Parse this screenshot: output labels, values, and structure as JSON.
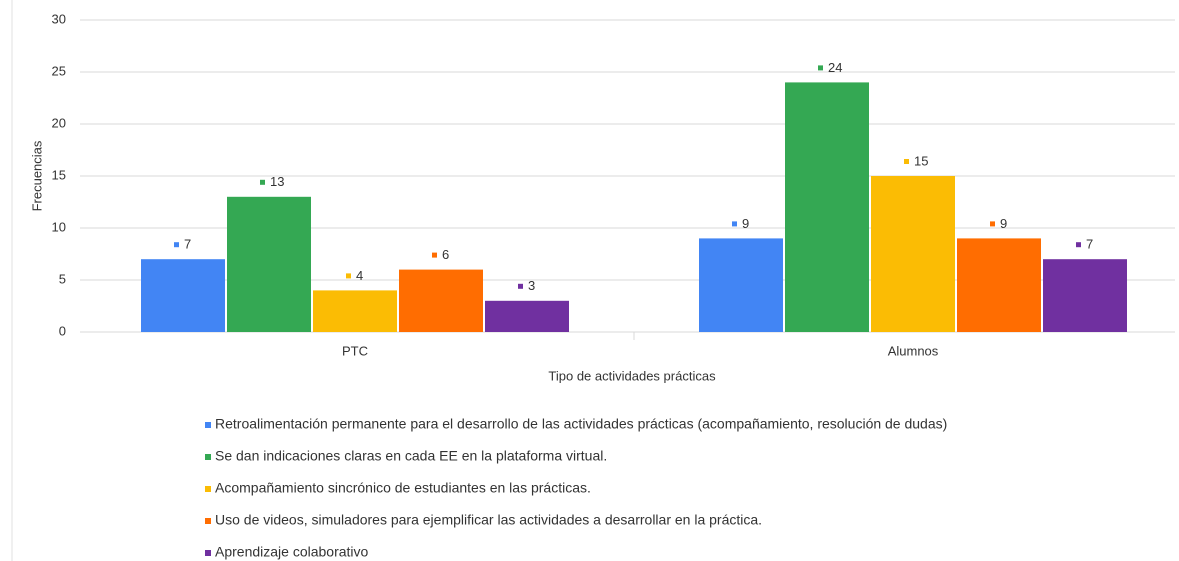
{
  "chart_data": {
    "type": "bar",
    "x_label": "Tipo de actividades prácticas",
    "y_label": "Frecuencias",
    "categories": [
      "PTC",
      "Alumnos"
    ],
    "series": [
      {
        "name": "Retroalimentación permanente para el desarrollo de las actividades  prácticas (acompañamiento, resolución de dudas)",
        "color": "#4285f4",
        "values": [
          7,
          9
        ]
      },
      {
        "name": "Se dan indicaciones claras en cada EE en la plataforma virtual.",
        "color": "#34a853",
        "values": [
          13,
          24
        ]
      },
      {
        "name": "Acompañamiento sincrónico de estudiantes en las prácticas.",
        "color": "#fbbc04",
        "values": [
          4,
          15
        ]
      },
      {
        "name": "Uso de videos, simuladores para ejemplificar las actividades a desarrollar en la práctica.",
        "color": "#ff6d01",
        "values": [
          6,
          9
        ]
      },
      {
        "name": "Aprendizaje colaborativo",
        "color": "#7030a0",
        "values": [
          3,
          7
        ]
      }
    ],
    "ylim": [
      0,
      30
    ],
    "yticks": [
      0,
      5,
      10,
      15,
      20,
      25,
      30
    ],
    "grid": true,
    "legend": "bottom"
  }
}
